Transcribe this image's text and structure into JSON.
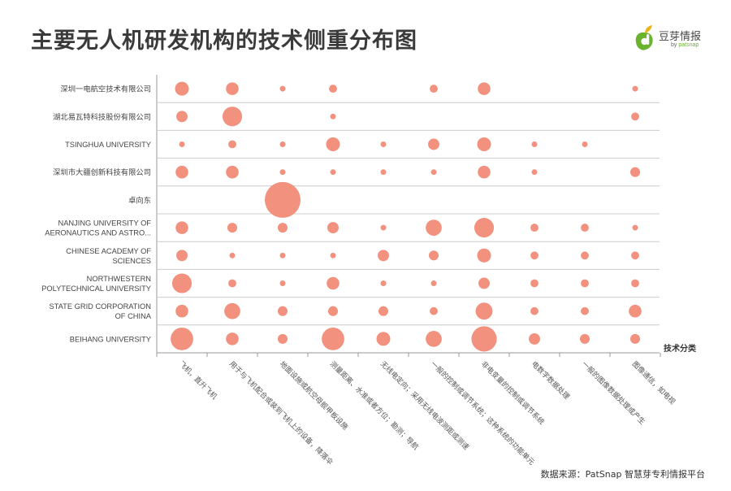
{
  "title": "主要无人机研发机构的技术侧重分布图",
  "logo": {
    "icon": "douya-leaf-logo-icon",
    "name": "豆芽情报",
    "sub_prefix": "by ",
    "sub_brand": "patsnap"
  },
  "source": "数据来源：PatSnap 智慧芽专利情报平台",
  "colors": {
    "bubble": "#f2917d",
    "grid": "#cccccc",
    "axis": "#999999"
  },
  "chart_data": {
    "type": "bubble-matrix",
    "title": "主要无人机研发机构的技术侧重分布图",
    "x_axis_title": "技术分类",
    "rows": [
      "深圳一电航空技术有限公司",
      "湖北易瓦特科技股份有限公司",
      "TSINGHUA UNIVERSITY",
      "深圳市大疆创新科技有限公司",
      "卓向东",
      "NANJING UNIVERSITY OF\nAERONAUTICS AND ASTRO...",
      "CHINESE ACADEMY OF\nSCIENCES",
      "NORTHWESTERN\nPOLYTECHNICAL UNIVERSITY",
      "STATE GRID CORPORATION\nOF CHINA",
      "BEIHANG UNIVERSITY"
    ],
    "columns": [
      "飞机，直升飞机",
      "用于与飞机配合或装到飞机上的设备，降落伞",
      "地面设施或航空母舰甲板设施",
      "测量距离、水准或者方位；勘测；导航",
      "无线电定向；采用无线电波测距或测速",
      "一般的控制或调节系统；这种系统的功能单元",
      "非电变量的控制或调节系统",
      "电数字数据处理",
      "一般的图像数据处理或产生",
      "图像通信，如电视"
    ],
    "values": [
      [
        6,
        5,
        1,
        2,
        0,
        2,
        5,
        0,
        0,
        1
      ],
      [
        4,
        12,
        0,
        1,
        0,
        0,
        0,
        0,
        0,
        2
      ],
      [
        1,
        2,
        1,
        6,
        1,
        4,
        6,
        1,
        1,
        0
      ],
      [
        5,
        5,
        1,
        1,
        1,
        1,
        5,
        1,
        0,
        3
      ],
      [
        0,
        0,
        40,
        0,
        0,
        0,
        0,
        0,
        0,
        0
      ],
      [
        5,
        3,
        3,
        4,
        1,
        8,
        12,
        2,
        2,
        1
      ],
      [
        4,
        1,
        1,
        1,
        4,
        3,
        6,
        2,
        2,
        2
      ],
      [
        12,
        2,
        1,
        5,
        1,
        1,
        4,
        2,
        2,
        2
      ],
      [
        5,
        8,
        3,
        3,
        3,
        2,
        9,
        2,
        2,
        5
      ],
      [
        16,
        5,
        3,
        16,
        6,
        8,
        20,
        4,
        3,
        3
      ]
    ],
    "max_value": 40,
    "legend": "none",
    "grid": "horizontal"
  }
}
